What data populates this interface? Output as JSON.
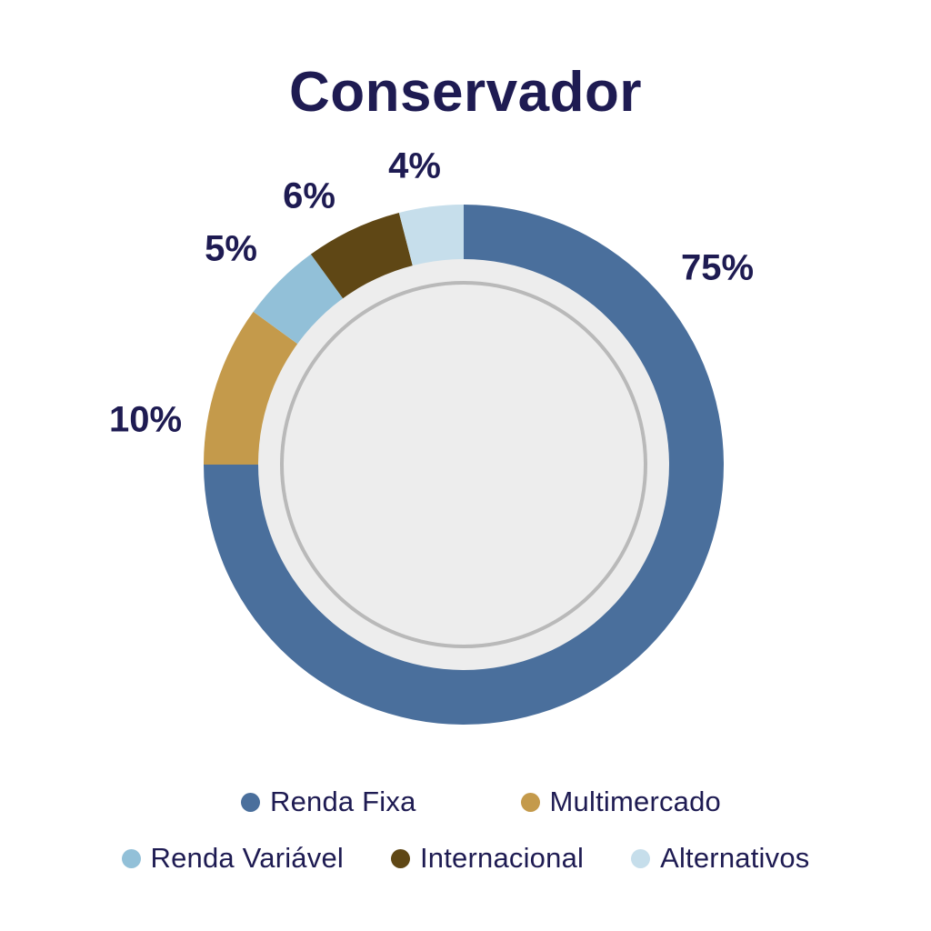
{
  "title": "Conservador",
  "colors": {
    "background": "#ffffff",
    "text_navy": "#1e1b52",
    "inner_disc": "#ededed",
    "inner_ring": "#b9b9b9"
  },
  "chart_data": {
    "type": "pie",
    "subtype": "donut",
    "title": "Conservador",
    "start_angle_deg": 0,
    "direction": "clockwise",
    "legend_position": "bottom",
    "inner_disc_color": "#ededed",
    "inner_ring_color": "#b9b9b9",
    "series": [
      {
        "name": "Renda Fixa",
        "value": 75,
        "label": "75%",
        "color": "#4a6f9c"
      },
      {
        "name": "Multimercado",
        "value": 10,
        "label": "10%",
        "color": "#c49a4b"
      },
      {
        "name": "Renda Variável",
        "value": 5,
        "label": "5%",
        "color": "#92c0d8"
      },
      {
        "name": "Internacional",
        "value": 6,
        "label": "6%",
        "color": "#5f4715"
      },
      {
        "name": "Alternativos",
        "value": 4,
        "label": "4%",
        "color": "#c6deeb"
      }
    ]
  }
}
